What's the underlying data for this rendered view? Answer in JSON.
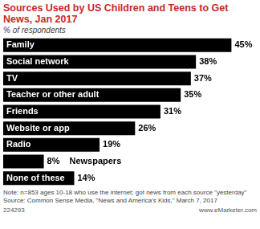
{
  "chart_data": {
    "type": "bar",
    "orientation": "horizontal",
    "title": "Sources Used by US Children and Teens to Get News, Jan 2017",
    "subtitle": "% of respondents",
    "categories": [
      "Family",
      "Social network",
      "TV",
      "Teacher or other adult",
      "Friends",
      "Website or app",
      "Radio",
      "Newspapers",
      "None of these"
    ],
    "values": [
      45,
      38,
      37,
      35,
      31,
      26,
      19,
      8,
      14
    ],
    "value_labels": [
      "45%",
      "38%",
      "37%",
      "35%",
      "31%",
      "26%",
      "19%",
      "8%",
      "14%"
    ],
    "color": "#000000",
    "xlim": [
      0,
      50
    ],
    "grid": false,
    "data_labels": true,
    "annotations": [
      "Note: n=853 ages 10-18 who use the internet; got news from each source \"yesterday\"",
      "Source: Common Sense Media, \"News and America's Kids,\" March 7, 2017",
      "224293",
      "www.eMarketer.com"
    ]
  }
}
